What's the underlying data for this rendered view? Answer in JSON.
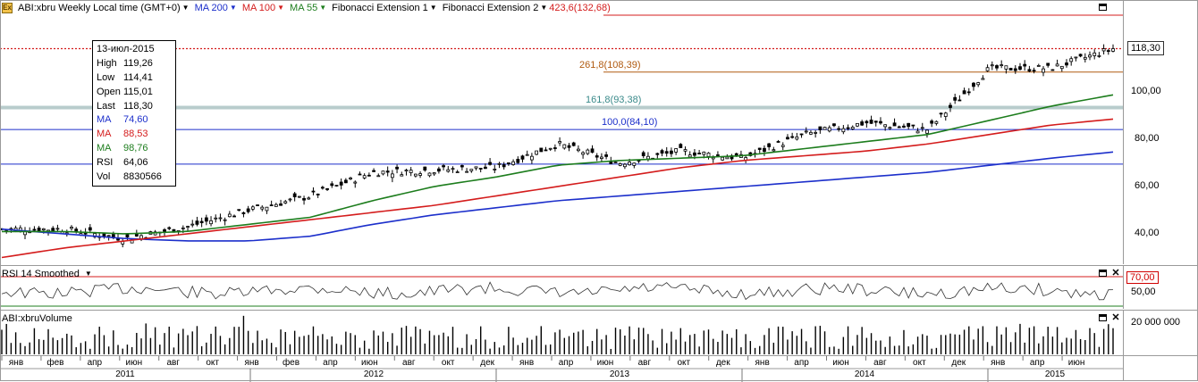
{
  "legend": {
    "symbol": "ABI:xbru Weekly Local time (GMT+0)",
    "ma200": {
      "label": "MA 200",
      "color": "#1c2fcb"
    },
    "ma100": {
      "label": "MA 100",
      "color": "#d41c1c"
    },
    "ma55": {
      "label": "MA 55",
      "color": "#1d7d1d"
    },
    "fib1": "Fibonacci Extension 1",
    "fib2": "Fibonacci Extension 2",
    "fib2_level": "423,6(132,68)"
  },
  "tooltip": {
    "date": "13-июл-2015",
    "rows": [
      {
        "k": "High",
        "v": "119,26",
        "color": "#000000"
      },
      {
        "k": "Low",
        "v": "114,41",
        "color": "#000000"
      },
      {
        "k": "Open",
        "v": "115,01",
        "color": "#000000"
      },
      {
        "k": "Last",
        "v": "118,30",
        "color": "#000000"
      },
      {
        "k": "MA",
        "v": "74,60",
        "color": "#1c2fcb"
      },
      {
        "k": "MA",
        "v": "88,53",
        "color": "#d41c1c"
      },
      {
        "k": "MA",
        "v": "98,76",
        "color": "#1d7d1d"
      },
      {
        "k": "RSI",
        "v": "64,06",
        "color": "#000000"
      },
      {
        "k": "Vol",
        "v": "8830566",
        "color": "#000000"
      }
    ]
  },
  "fib_levels": [
    {
      "text": "261,8(108,39)",
      "color": "#b05a10"
    },
    {
      "text": "161,8(93,38)",
      "color": "#3a8a8a"
    },
    {
      "text": "100,0(84,10)",
      "color": "#1c2fcb"
    }
  ],
  "price_axis": {
    "ticks": [
      "100,00",
      "80,00",
      "60,00",
      "40,00"
    ],
    "last_price": "118,30"
  },
  "rsi_panel": {
    "title": "RSI 14 Smoothed",
    "level_tag": "70,00",
    "tick": "50,00"
  },
  "volume_panel": {
    "title": "ABI:xbruVolume",
    "tick": "20 000 000"
  },
  "x_axis": {
    "months": [
      "янв",
      "фев",
      "апр",
      "июн",
      "авг",
      "окт",
      "янв",
      "фев",
      "апр",
      "июн",
      "авг",
      "окт",
      "дек",
      "янв",
      "апр",
      "июн",
      "авг",
      "окт",
      "дек",
      "янв",
      "апр",
      "июн",
      "авг",
      "окт",
      "дек",
      "янв",
      "апр",
      "июн"
    ],
    "years": [
      "2011",
      "2012",
      "2013",
      "2014",
      "2015"
    ]
  },
  "chart_data": {
    "type": "line",
    "title": "ABI:xbru Weekly",
    "xlabel": "",
    "ylabel": "",
    "ylim": [
      28,
      132
    ],
    "x": [
      "2011-01",
      "2011-04",
      "2011-07",
      "2011-10",
      "2012-01",
      "2012-04",
      "2012-07",
      "2012-10",
      "2013-01",
      "2013-04",
      "2013-07",
      "2013-10",
      "2014-01",
      "2014-04",
      "2014-07",
      "2014-10",
      "2015-01",
      "2015-04",
      "2015-07"
    ],
    "series": [
      {
        "name": "Price",
        "values": [
          42,
          42,
          38,
          43,
          50,
          56,
          66,
          67,
          68,
          78,
          70,
          75,
          72,
          82,
          87,
          84,
          110,
          110,
          118.3
        ]
      },
      {
        "name": "MA 200",
        "values": [
          42,
          40,
          38,
          37,
          37,
          39,
          44,
          48,
          51,
          54,
          56,
          58,
          60,
          62,
          64,
          66,
          69,
          72,
          74.6
        ]
      },
      {
        "name": "MA 100",
        "values": [
          30,
          34,
          37,
          40,
          43,
          46,
          49,
          52,
          56,
          60,
          64,
          68,
          71,
          73,
          75,
          78,
          82,
          86,
          88.53
        ]
      },
      {
        "name": "MA 55",
        "values": [
          41,
          41,
          40,
          41,
          44,
          47,
          54,
          60,
          64,
          69,
          71,
          72,
          73,
          76,
          79,
          82,
          88,
          94,
          98.76
        ]
      }
    ]
  }
}
